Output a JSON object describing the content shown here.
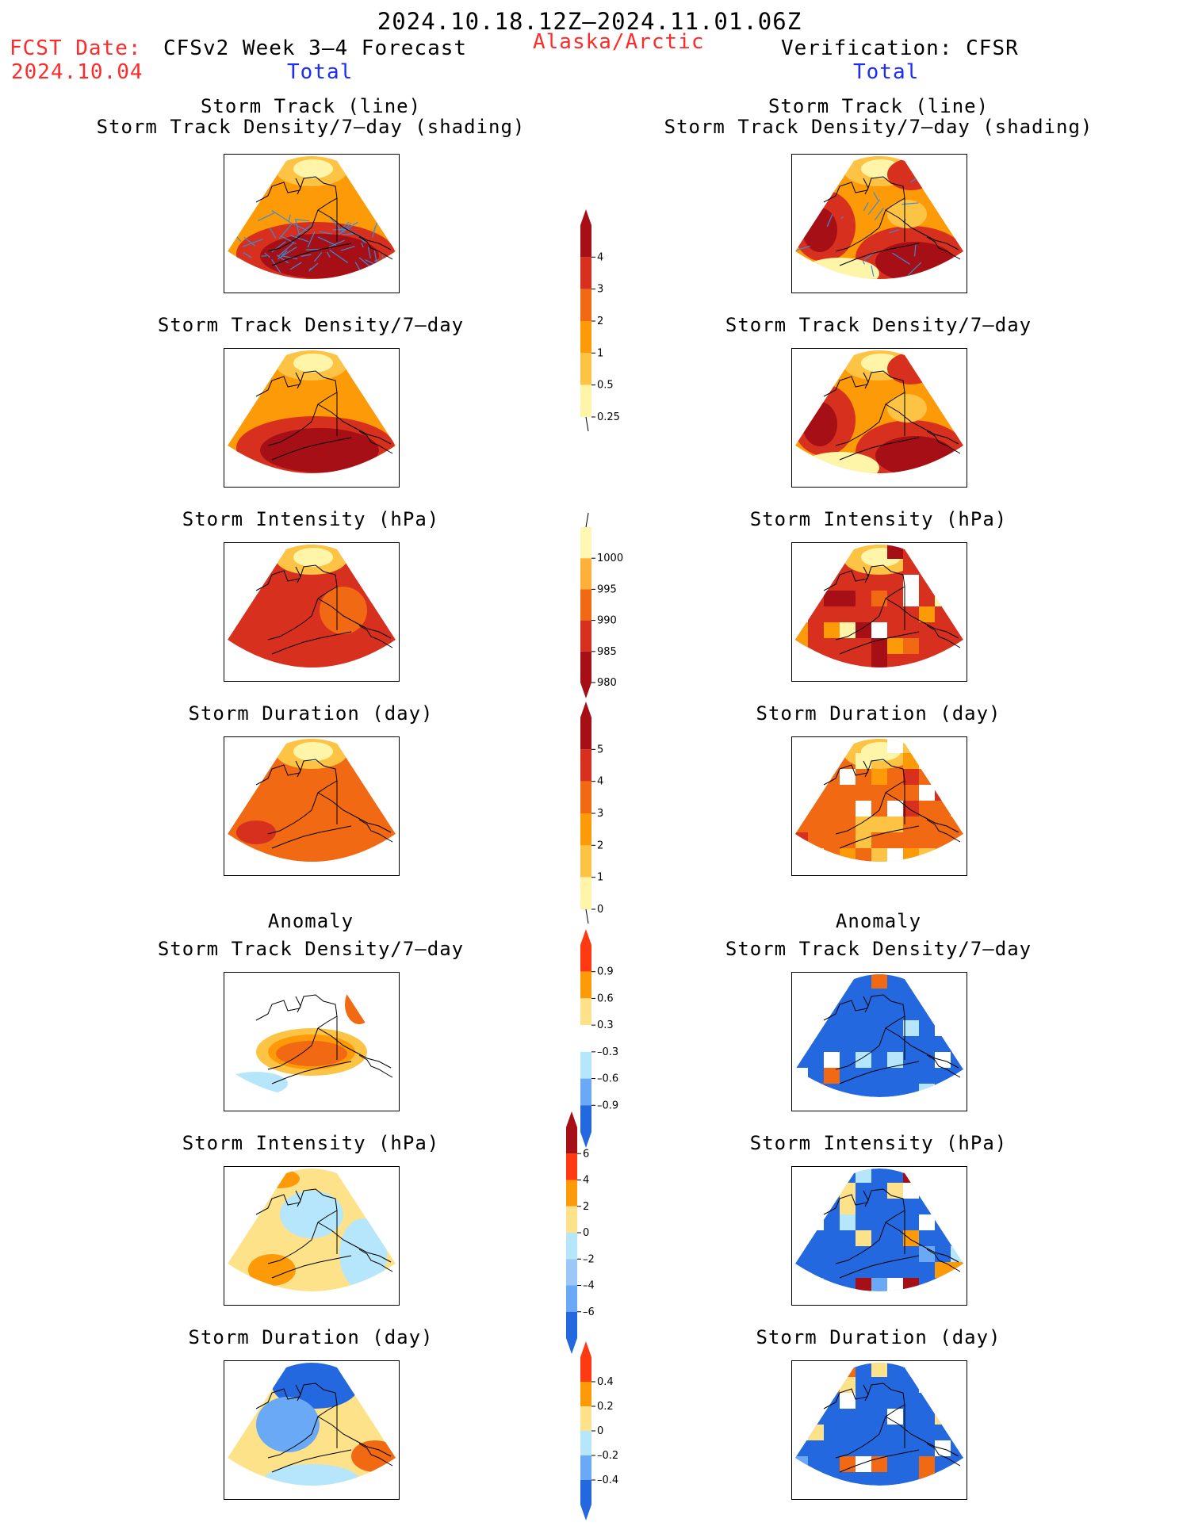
{
  "header": {
    "date_range": "2024.10.18.12Z–2024.11.01.06Z",
    "fcst_date_label": "FCST Date:",
    "fcst_date_value": "2024.10.04",
    "left_model": "CFSv2 Week 3–4 Forecast",
    "region": "Alaska/Arctic",
    "right_model": "Verification: CFSR",
    "left_total": "Total",
    "right_total": "Total",
    "left_anomaly": "Anomaly",
    "right_anomaly": "Anomaly"
  },
  "panels": {
    "track_title_1": "Storm Track (line)",
    "track_title_2": "Storm Track Density/7–day (shading)",
    "density": "Storm Track Density/7–day",
    "intensity": "Storm Intensity (hPa)",
    "duration": "Storm Duration (day)"
  },
  "colorbars": {
    "density_total": {
      "ticks": [
        "4",
        "3",
        "2",
        "1",
        "0.5",
        "0.25"
      ],
      "colors": [
        "#a50f15",
        "#d7301f",
        "#f16913",
        "#fd9a08",
        "#fdc344",
        "#fff5a8"
      ]
    },
    "intensity_total": {
      "ticks": [
        "1000",
        "995",
        "990",
        "985",
        "980"
      ],
      "colors": [
        "#fff7b3",
        "#fdb13a",
        "#f16913",
        "#d7301f",
        "#a50f15"
      ]
    },
    "duration_total": {
      "ticks": [
        "5",
        "4",
        "3",
        "2",
        "1",
        "0"
      ],
      "colors": [
        "#a50f15",
        "#d7301f",
        "#f16913",
        "#fd9a08",
        "#fdc344",
        "#fff5a8"
      ]
    },
    "density_anom": {
      "ticks": [
        "0.9",
        "0.6",
        "0.3",
        "–0.3",
        "–0.6",
        "–0.9"
      ],
      "colors": [
        "#ff3a12",
        "#fd9a08",
        "#fde28a",
        "#ffffff",
        "#b6e6fb",
        "#69a9f5",
        "#2468e0"
      ]
    },
    "intensity_anom": {
      "ticks": [
        "6",
        "4",
        "2",
        "0",
        "–2",
        "–4",
        "–6"
      ],
      "colors": [
        "#a50f15",
        "#ff3a12",
        "#fd9a08",
        "#fde28a",
        "#b6e6fb",
        "#9cc8f8",
        "#69a9f5",
        "#2468e0"
      ]
    },
    "duration_anom": {
      "ticks": [
        "0.4",
        "0.2",
        "0",
        "–0.2",
        "–0.4"
      ],
      "colors": [
        "#ff3a12",
        "#fd9a08",
        "#fde28a",
        "#b6e6fb",
        "#69a9f5",
        "#2468e0"
      ]
    }
  },
  "colors": {
    "dark_red": "#a50f15",
    "red": "#d7301f",
    "orange_red": "#f16913",
    "orange": "#fd9a08",
    "light_orange": "#fdc344",
    "yellow": "#fff5a8",
    "blue": "#2468e0",
    "light_blue": "#b6e6fb",
    "track_line": "#3a8cd6"
  }
}
